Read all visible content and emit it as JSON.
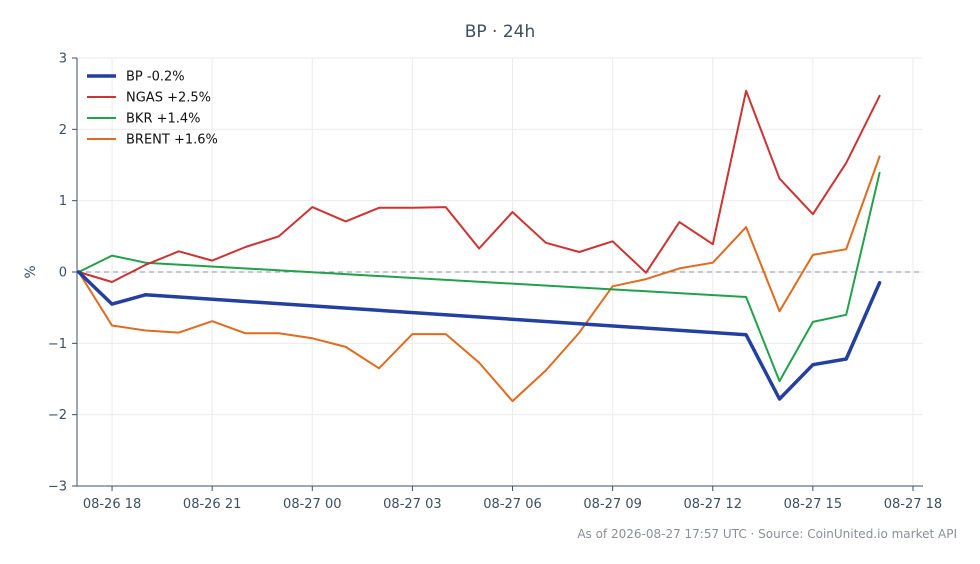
{
  "chart_data": {
    "type": "line",
    "title": "BP · 24h",
    "xlabel": "",
    "ylabel": "%",
    "xlim": [
      -1.05,
      24.3
    ],
    "ylim": [
      -3,
      3
    ],
    "yticks": [
      -3,
      -2,
      -1,
      0,
      1,
      2,
      3
    ],
    "ytick_labels": [
      "−3",
      "−2",
      "−1",
      "0",
      "1",
      "2",
      "3"
    ],
    "xticks": [
      {
        "x": 0,
        "label": "08-26 18"
      },
      {
        "x": 3,
        "label": "08-26 21"
      },
      {
        "x": 6,
        "label": "08-27 00"
      },
      {
        "x": 9,
        "label": "08-27 03"
      },
      {
        "x": 12,
        "label": "08-27 06"
      },
      {
        "x": 15,
        "label": "08-27 09"
      },
      {
        "x": 18,
        "label": "08-27 12"
      },
      {
        "x": 21,
        "label": "08-27 15"
      },
      {
        "x": 24,
        "label": "08-27 18"
      }
    ],
    "x": [
      -1,
      0,
      1,
      2,
      3,
      4,
      5,
      6,
      7,
      8,
      9,
      10,
      11,
      12,
      13,
      14,
      15,
      16,
      17,
      18,
      19,
      20,
      21,
      22,
      23
    ],
    "grid": true,
    "zero_line": true,
    "legend_position": "top-left",
    "series": [
      {
        "name": "BP -0.2%",
        "color": "#2340a0",
        "width": 3.5,
        "points": [
          [
            -1,
            0
          ],
          [
            0,
            -0.45
          ],
          [
            1,
            -0.32
          ],
          [
            19,
            -0.88
          ],
          [
            20,
            -1.78
          ],
          [
            21,
            -1.3
          ],
          [
            22,
            -1.22
          ],
          [
            23,
            -0.15
          ]
        ]
      },
      {
        "name": "NGAS +2.5%",
        "color": "#cc3333",
        "width": 2,
        "points": [
          [
            -1,
            0
          ],
          [
            0,
            -0.14
          ],
          [
            1,
            0.1
          ],
          [
            2,
            0.29
          ],
          [
            3,
            0.16
          ],
          [
            4,
            0.35
          ],
          [
            5,
            0.5
          ],
          [
            6,
            0.91
          ],
          [
            7,
            0.71
          ],
          [
            8,
            0.9
          ],
          [
            9,
            0.9
          ],
          [
            10,
            0.91
          ],
          [
            11,
            0.33
          ],
          [
            12,
            0.84
          ],
          [
            13,
            0.41
          ],
          [
            14,
            0.28
          ],
          [
            15,
            0.43
          ],
          [
            16,
            -0.01
          ],
          [
            17,
            0.7
          ],
          [
            18,
            0.39
          ],
          [
            19,
            2.54
          ],
          [
            20,
            1.31
          ],
          [
            21,
            0.81
          ],
          [
            22,
            1.53
          ],
          [
            23,
            2.47
          ]
        ]
      },
      {
        "name": "BKR +1.4%",
        "color": "#22a04a",
        "width": 2,
        "points": [
          [
            -1,
            0
          ],
          [
            0,
            0.23
          ],
          [
            1,
            0.13
          ],
          [
            19,
            -0.35
          ],
          [
            20,
            -1.53
          ],
          [
            21,
            -0.7
          ],
          [
            22,
            -0.6
          ],
          [
            23,
            1.39
          ]
        ]
      },
      {
        "name": "BRENT +1.6%",
        "color": "#e06a1e",
        "width": 2,
        "points": [
          [
            -1,
            0
          ],
          [
            0,
            -0.75
          ],
          [
            1,
            -0.82
          ],
          [
            2,
            -0.85
          ],
          [
            3,
            -0.69
          ],
          [
            4,
            -0.86
          ],
          [
            5,
            -0.86
          ],
          [
            6,
            -0.93
          ],
          [
            7,
            -1.05
          ],
          [
            8,
            -1.35
          ],
          [
            9,
            -0.87
          ],
          [
            10,
            -0.87
          ],
          [
            11,
            -1.27
          ],
          [
            12,
            -1.81
          ],
          [
            13,
            -1.38
          ],
          [
            14,
            -0.85
          ],
          [
            15,
            -0.2
          ],
          [
            16,
            -0.1
          ],
          [
            17,
            0.05
          ],
          [
            18,
            0.13
          ],
          [
            19,
            0.63
          ],
          [
            20,
            -0.55
          ],
          [
            21,
            0.24
          ],
          [
            22,
            0.32
          ],
          [
            23,
            1.62
          ]
        ]
      }
    ]
  },
  "footer": "As of 2026-08-27 17:57 UTC · Source: CoinUnited.io market API"
}
